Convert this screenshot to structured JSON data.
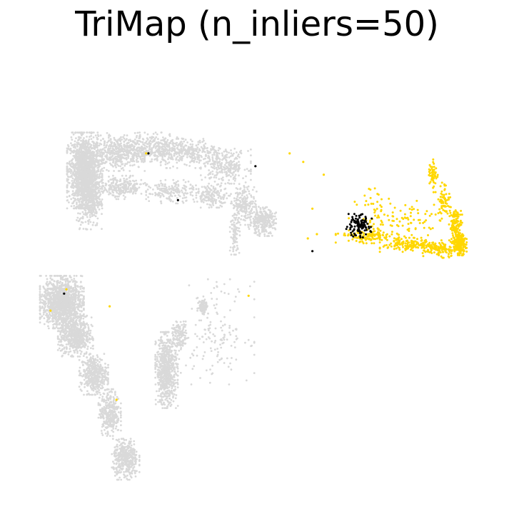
{
  "chart_data": {
    "type": "scatter",
    "title": "TriMap (n_inliers=50)",
    "xlabel": "",
    "ylabel": "",
    "axes_visible": false,
    "grid": false,
    "legend": "none",
    "colors": {
      "background_points": "#d9d9d9",
      "yellow_points": "#ffd700",
      "black_points": "#000000"
    },
    "xlim": [
      0,
      100
    ],
    "ylim": [
      0,
      100
    ],
    "series": [
      {
        "color": "#d9d9d9",
        "regions": [
          {
            "cx": 12,
            "cy": 75,
            "rx": 2.8,
            "ry": 6.5,
            "n": 1500
          },
          {
            "cx": 13,
            "cy": 68,
            "rx": 2.0,
            "ry": 5.0,
            "n": 350
          },
          {
            "cx": 19,
            "cy": 79,
            "rx": 4.5,
            "ry": 3.0,
            "n": 350
          },
          {
            "cx": 26,
            "cy": 80.5,
            "rx": 7.0,
            "ry": 2.5,
            "n": 400
          },
          {
            "cx": 35,
            "cy": 79,
            "rx": 6.0,
            "ry": 2.5,
            "n": 300
          },
          {
            "cx": 43,
            "cy": 76,
            "rx": 4.0,
            "ry": 3.0,
            "n": 250
          },
          {
            "cx": 20,
            "cy": 71,
            "rx": 4.0,
            "ry": 2.0,
            "n": 250
          },
          {
            "cx": 31,
            "cy": 70,
            "rx": 4.0,
            "ry": 2.0,
            "n": 180
          },
          {
            "cx": 40,
            "cy": 69,
            "rx": 3.0,
            "ry": 2.0,
            "n": 160
          },
          {
            "cx": 47,
            "cy": 67,
            "rx": 2.0,
            "ry": 3.5,
            "n": 200
          },
          {
            "cx": 51,
            "cy": 63,
            "rx": 2.2,
            "ry": 2.5,
            "n": 280
          },
          {
            "cx": 45,
            "cy": 60,
            "rx": 0.8,
            "ry": 3.5,
            "n": 90
          },
          {
            "cx": 38,
            "cy": 43,
            "rx": 0.9,
            "ry": 1.5,
            "n": 90
          },
          {
            "cx": 30,
            "cy": 28,
            "rx": 1.8,
            "ry": 6.5,
            "n": 700
          },
          {
            "cx": 33,
            "cy": 36,
            "rx": 1.3,
            "ry": 2.5,
            "n": 120
          },
          {
            "cx": 7,
            "cy": 44,
            "rx": 3.5,
            "ry": 4.5,
            "n": 1300
          },
          {
            "cx": 10,
            "cy": 36,
            "rx": 2.8,
            "ry": 3.5,
            "n": 550
          },
          {
            "cx": 14,
            "cy": 27,
            "rx": 2.3,
            "ry": 3.5,
            "n": 420
          },
          {
            "cx": 17.5,
            "cy": 18,
            "rx": 1.8,
            "ry": 4.0,
            "n": 320
          },
          {
            "cx": 21,
            "cy": 7,
            "rx": 2.2,
            "ry": 3.5,
            "n": 400
          },
          {
            "cx": 41,
            "cy": 37,
            "rx": 6.0,
            "ry": 9.0,
            "n": 150
          }
        ]
      },
      {
        "color": "#ffd700",
        "regions": [
          {
            "cx": 74,
            "cy": 59.5,
            "rx": 5.0,
            "ry": 1.2,
            "n": 120
          },
          {
            "cx": 83,
            "cy": 57.5,
            "rx": 4.5,
            "ry": 1.2,
            "n": 140
          },
          {
            "cx": 90,
            "cy": 56.5,
            "rx": 3.0,
            "ry": 1.5,
            "n": 120
          },
          {
            "cx": 94.5,
            "cy": 57.5,
            "rx": 1.0,
            "ry": 1.8,
            "n": 170
          },
          {
            "cx": 93.5,
            "cy": 62,
            "rx": 1.0,
            "ry": 3.0,
            "n": 120
          },
          {
            "cx": 91,
            "cy": 68,
            "rx": 1.0,
            "ry": 3.0,
            "n": 70
          },
          {
            "cx": 88.5,
            "cy": 74,
            "rx": 0.8,
            "ry": 3.0,
            "n": 50
          },
          {
            "cx": 81,
            "cy": 63,
            "rx": 8.0,
            "ry": 4.0,
            "n": 110
          },
          {
            "cx": 75,
            "cy": 66,
            "rx": 3.0,
            "ry": 5.0,
            "n": 25
          }
        ]
      },
      {
        "color": "#000000",
        "regions": [
          {
            "cx": 72,
            "cy": 62,
            "rx": 2.2,
            "ry": 2.0,
            "n": 110
          }
        ]
      }
    ],
    "annotation_points": [
      {
        "x": 26,
        "y": 79,
        "color": "#000000"
      },
      {
        "x": 49.5,
        "y": 76,
        "color": "#000000"
      },
      {
        "x": 32.5,
        "y": 68,
        "color": "#000000"
      },
      {
        "x": 62,
        "y": 56,
        "color": "#000000"
      },
      {
        "x": 7.5,
        "y": 46,
        "color": "#000000"
      },
      {
        "x": 25.5,
        "y": 79,
        "color": "#ffd700"
      },
      {
        "x": 57,
        "y": 79,
        "color": "#ffd700"
      },
      {
        "x": 60,
        "y": 77,
        "color": "#ffd700"
      },
      {
        "x": 64.5,
        "y": 74,
        "color": "#ffd700"
      },
      {
        "x": 62,
        "y": 66,
        "color": "#ffd700"
      },
      {
        "x": 63,
        "y": 60,
        "color": "#ffd700"
      },
      {
        "x": 61,
        "y": 59,
        "color": "#ffd700"
      },
      {
        "x": 48,
        "y": 45.5,
        "color": "#ffd700"
      },
      {
        "x": 4.5,
        "y": 42,
        "color": "#ffd700"
      },
      {
        "x": 17.5,
        "y": 43,
        "color": "#ffd700"
      },
      {
        "x": 8,
        "y": 47,
        "color": "#ffd700"
      },
      {
        "x": 19,
        "y": 21,
        "color": "#ffd700"
      }
    ]
  }
}
